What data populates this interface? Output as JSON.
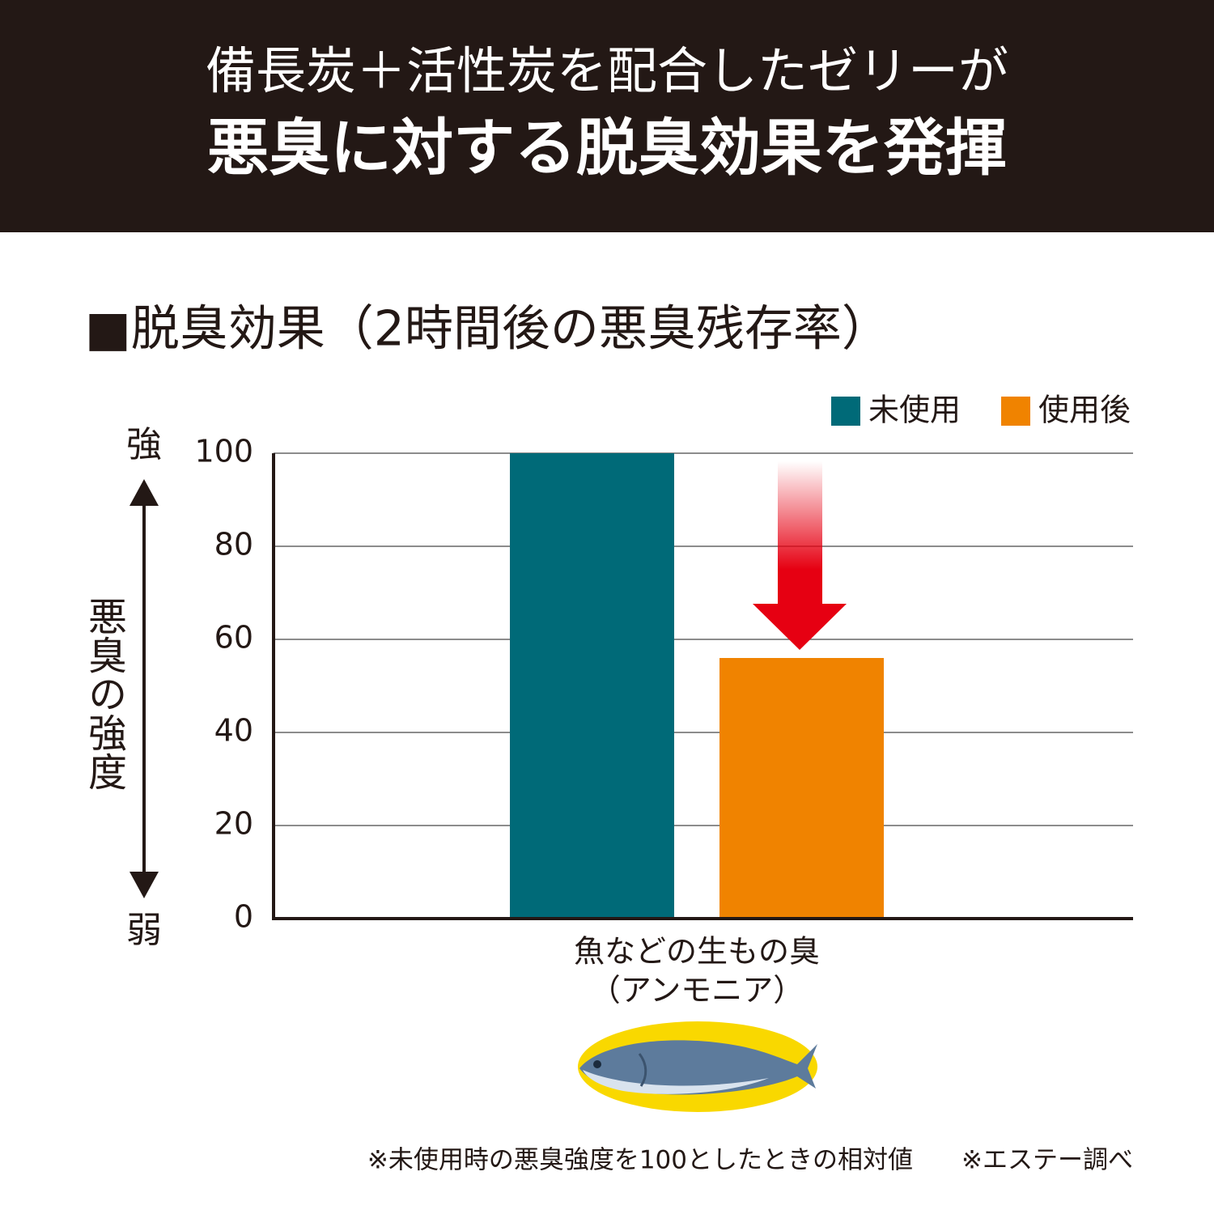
{
  "header": {
    "lines": [
      "備長炭＋活性炭を配合したゼリーが",
      "悪臭に対する脱臭効果を発揮"
    ]
  },
  "chart_data": {
    "type": "bar",
    "title": "■脱臭効果（2時間後の悪臭残存率）",
    "y_label": "悪臭の強度",
    "y_high_label": "強",
    "y_low_label": "弱",
    "categories": [
      [
        "魚などの生もの臭",
        "（アンモニア）"
      ]
    ],
    "series": [
      {
        "name": "未使用",
        "color": "#006a78",
        "values": [
          100
        ]
      },
      {
        "name": "使用後",
        "color": "#f08300",
        "values": [
          56
        ]
      }
    ],
    "ylim": [
      0,
      100
    ],
    "yticks": [
      0,
      20,
      40,
      60,
      80,
      100
    ],
    "grid": true,
    "legend": "top-right"
  },
  "footnotes": [
    "※未使用時の悪臭強度を100としたときの相対値",
    "※エステー調べ"
  ]
}
